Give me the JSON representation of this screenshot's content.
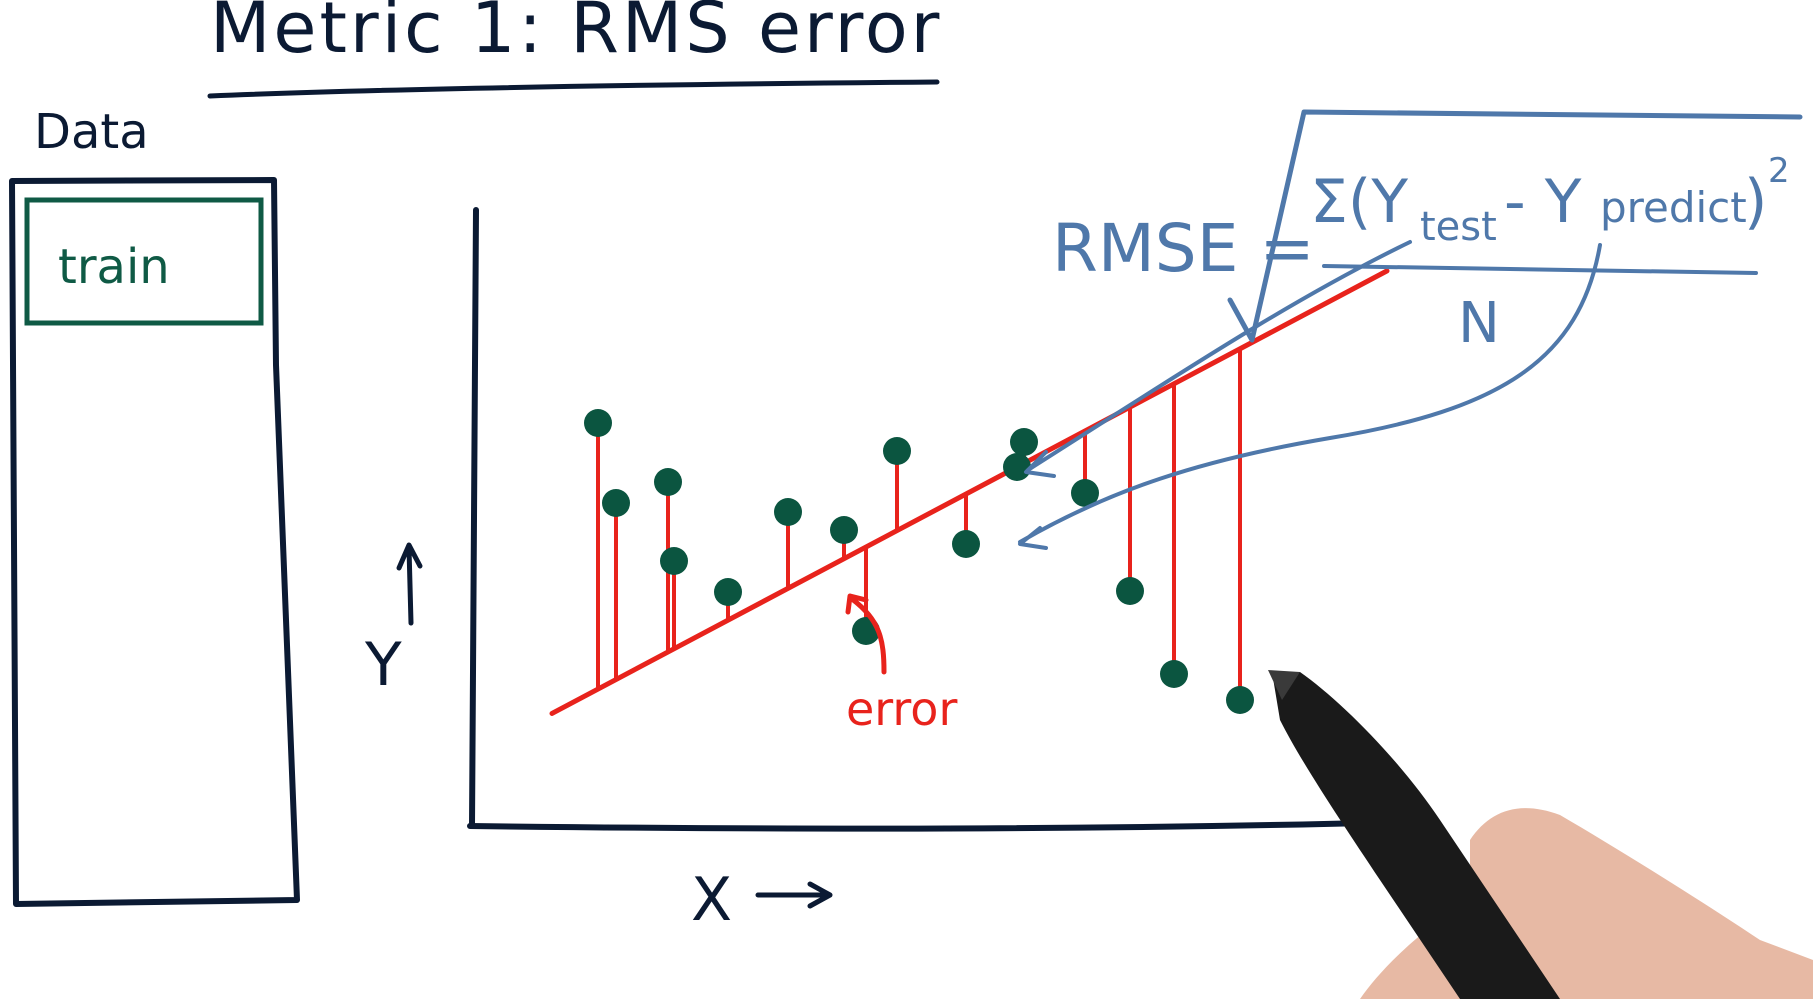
{
  "title": "Metric 1: RMS error",
  "data_box": {
    "label": "Data",
    "partition_label": "train"
  },
  "axes": {
    "x_label": "X",
    "y_label": "Y"
  },
  "annotation": {
    "error_label": "error"
  },
  "formula": {
    "lhs": "RMSE =",
    "sum_open": "Σ(Y",
    "y_test_sub": "test",
    "minus": " - Y",
    "y_predict_sub": "predict",
    "close": ")",
    "exponent": "2",
    "denominator": "N"
  },
  "colors": {
    "ink": "#0b1a33",
    "train": "#0f5a45",
    "points": "#0b5540",
    "error": "#e8231c",
    "formula": "#4f78aa"
  },
  "regression_line": {
    "slope": -0.53,
    "intercept": 1006
  },
  "chart_data": {
    "type": "scatter",
    "title": "",
    "xlabel": "X",
    "ylabel": "Y",
    "series": [
      {
        "x": [
          598,
          616,
          668,
          674,
          728,
          788,
          844,
          897,
          866,
          966,
          1017,
          1024,
          1085,
          1130,
          1174,
          1240
        ],
        "y": [
          423,
          503,
          482,
          561,
          592,
          512,
          530,
          451,
          631,
          544,
          467,
          442,
          493,
          591,
          674,
          700
        ]
      }
    ]
  }
}
